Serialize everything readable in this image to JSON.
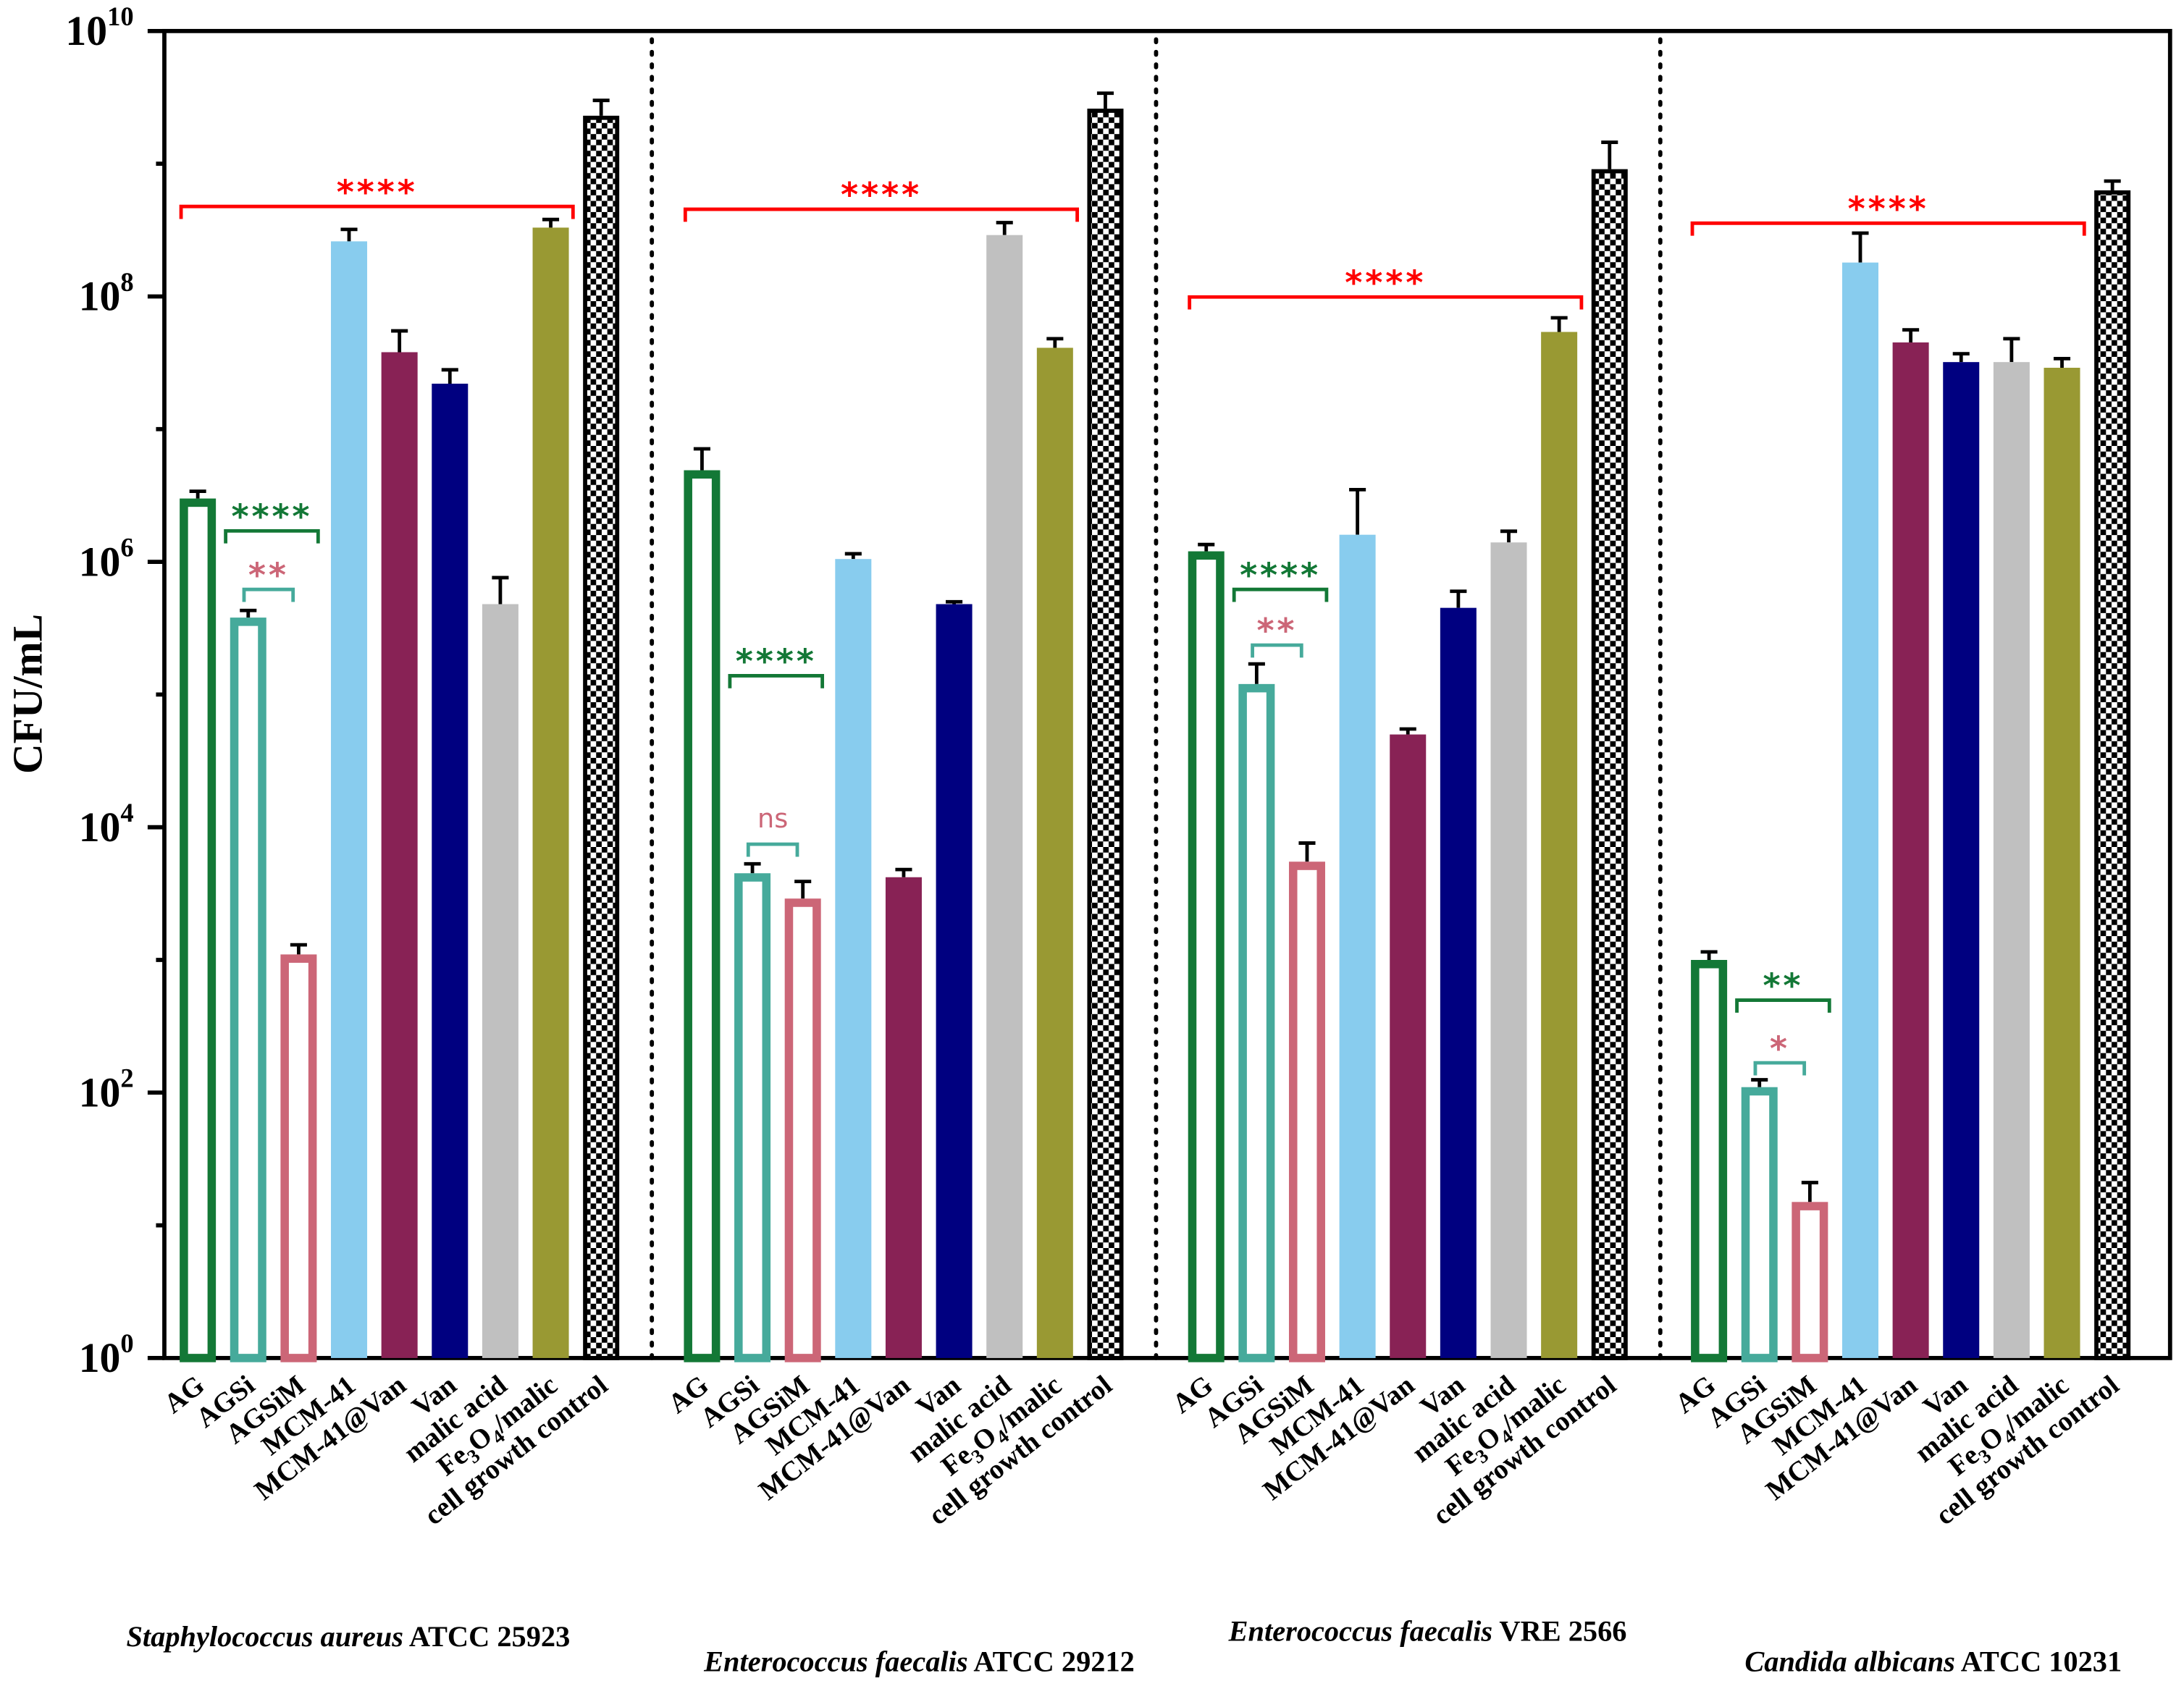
{
  "chart_data": {
    "type": "bar",
    "title": "",
    "ylabel": "CFU/mL",
    "yscale": "log",
    "ylim": [
      1,
      10000000000
    ],
    "yticks": [
      {
        "base": "10",
        "exp": "0"
      },
      {
        "base": "10",
        "exp": "2"
      },
      {
        "base": "10",
        "exp": "4"
      },
      {
        "base": "10",
        "exp": "6"
      },
      {
        "base": "10",
        "exp": "8"
      },
      {
        "base": "10",
        "exp": "10"
      }
    ],
    "categories": [
      "AG",
      "AGSi",
      "AGSiM",
      "MCM-41",
      "MCM-41@Van",
      "Van",
      "malic acid",
      "Fe3O4/malic",
      "cell growth control"
    ],
    "category_styles": [
      {
        "color": "#137836",
        "style": "hollow"
      },
      {
        "color": "#46aa9b",
        "style": "hollow"
      },
      {
        "color": "#cc6677",
        "style": "hollow"
      },
      {
        "color": "#88ccee",
        "style": "solid"
      },
      {
        "color": "#882255",
        "style": "solid"
      },
      {
        "color": "#000080",
        "style": "solid"
      },
      {
        "color": "#c0c0c0",
        "style": "solid"
      },
      {
        "color": "#999933",
        "style": "solid"
      },
      {
        "color": "#000000",
        "style": "checker"
      }
    ],
    "groups": [
      {
        "species": "Staphylococcus aureus",
        "strain": " ATCC 25923",
        "values": [
          3000000.0,
          380000.0,
          1100.0,
          260000000.0,
          38000000.0,
          22000000.0,
          480000.0,
          330000000.0,
          2300000000.0
        ],
        "errors_upper": [
          3400000.0,
          430000.0,
          1300.0,
          320000000.0,
          55000000.0,
          28000000.0,
          760000.0,
          380000000.0,
          3000000000.0
        ]
      },
      {
        "species": "Enterococcus faecalis",
        "strain": " ATCC 29212",
        "values": [
          4900000.0,
          4500.0,
          2900.0,
          1050000.0,
          4200.0,
          480000.0,
          290000000.0,
          41000000.0,
          2600000000.0
        ],
        "errors_upper": [
          7100000.0,
          5300.0,
          3900.0,
          1150000.0,
          4800.0,
          500000.0,
          360000000.0,
          48000000.0,
          3400000000.0
        ]
      },
      {
        "species": "Enterococcus faecalis",
        "strain": " VRE 2566",
        "values": [
          1200000.0,
          120000.0,
          5500.0,
          1600000.0,
          50000.0,
          450000.0,
          1400000.0,
          54000000.0,
          910000000.0
        ],
        "errors_upper": [
          1350000.0,
          170000.0,
          7600.0,
          3500000.0,
          55000.0,
          600000.0,
          1700000.0,
          69000000.0,
          1450000000.0
        ]
      },
      {
        "species": "Candida albicans",
        "strain": " ATCC 10231",
        "values": [
          1000.0,
          110.0,
          15,
          180000000.0,
          45000000.0,
          32000000.0,
          32000000.0,
          29000000.0,
          630000000.0
        ],
        "errors_upper": [
          1150.0,
          125.0,
          21,
          300000000.0,
          56000000.0,
          37000000.0,
          48000000.0,
          34000000.0,
          740000000.0
        ]
      }
    ],
    "significance": [
      {
        "group": 0,
        "from": 0,
        "to": 7,
        "label": "****",
        "color": "#ff0000"
      },
      {
        "group": 0,
        "from": 0,
        "to": 2,
        "label": "****",
        "color": "#137836"
      },
      {
        "group": 0,
        "from": 1,
        "to": 2,
        "label": "**",
        "color": "#cc6677",
        "bracket_color": "#46aa9b"
      },
      {
        "group": 1,
        "from": 0,
        "to": 7,
        "label": "****",
        "color": "#ff0000"
      },
      {
        "group": 1,
        "from": 0,
        "to": 2,
        "label": "****",
        "color": "#137836"
      },
      {
        "group": 1,
        "from": 1,
        "to": 2,
        "label": "ns",
        "color": "#cc6677",
        "bracket_color": "#46aa9b"
      },
      {
        "group": 2,
        "from": 0,
        "to": 7,
        "label": "****",
        "color": "#ff0000"
      },
      {
        "group": 2,
        "from": 0,
        "to": 2,
        "label": "****",
        "color": "#137836"
      },
      {
        "group": 2,
        "from": 1,
        "to": 2,
        "label": "**",
        "color": "#cc6677",
        "bracket_color": "#46aa9b"
      },
      {
        "group": 3,
        "from": 0,
        "to": 7,
        "label": "****",
        "color": "#ff0000"
      },
      {
        "group": 3,
        "from": 0,
        "to": 2,
        "label": "**",
        "color": "#137836"
      },
      {
        "group": 3,
        "from": 1,
        "to": 2,
        "label": "*",
        "color": "#cc6677",
        "bracket_color": "#46aa9b"
      }
    ],
    "grid": false,
    "legend": "none"
  }
}
